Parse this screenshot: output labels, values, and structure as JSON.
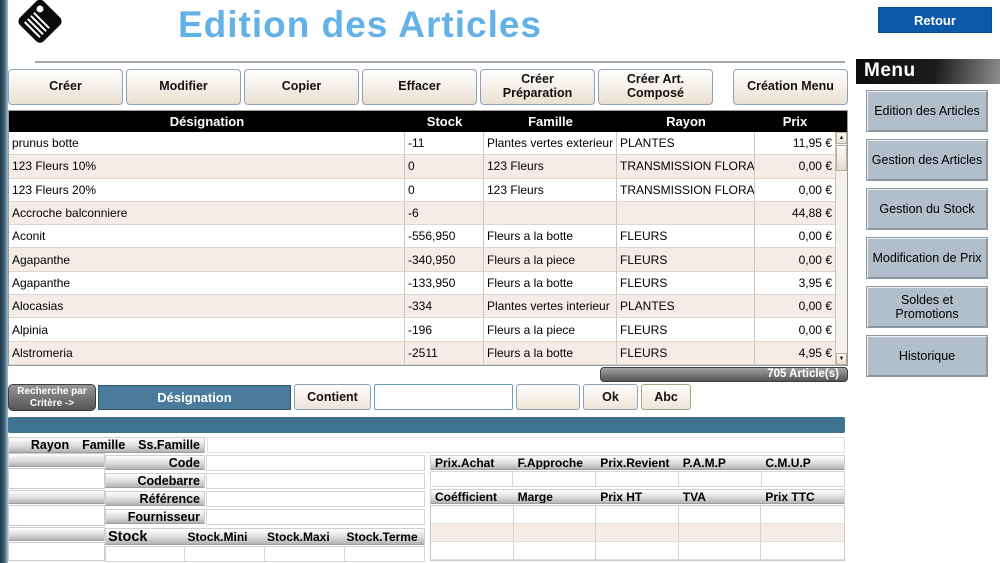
{
  "window": {
    "title": "Edition des Articles",
    "retour_label": "Retour"
  },
  "toolbar": {
    "buttons": [
      "Créer",
      "Modifier",
      "Copier",
      "Effacer",
      "Créer Préparation",
      "Créer Art. Composé",
      "Création Menu"
    ]
  },
  "table": {
    "columns": [
      "Désignation",
      "Stock",
      "Famille",
      "Rayon",
      "Prix"
    ],
    "rows": [
      [
        "prunus botte",
        "-11",
        "Plantes vertes exterieur",
        "PLANTES",
        "11,95 €"
      ],
      [
        "123 Fleurs 10%",
        "0",
        "123 Fleurs",
        "TRANSMISSION FLORALE",
        "0,00 €"
      ],
      [
        "123 Fleurs 20%",
        "0",
        "123 Fleurs",
        "TRANSMISSION FLORALE",
        "0,00 €"
      ],
      [
        "Accroche balconniere",
        "-6",
        "",
        "",
        "44,88 €"
      ],
      [
        "Aconit",
        "-556,950",
        "Fleurs a la botte",
        "FLEURS",
        "0,00 €"
      ],
      [
        "Agapanthe",
        "-340,950",
        "Fleurs a la piece",
        "FLEURS",
        "0,00 €"
      ],
      [
        "Agapanthe",
        "-133,950",
        "Fleurs a la botte",
        "FLEURS",
        "3,95 €"
      ],
      [
        "Alocasias",
        "-334",
        "Plantes vertes interieur",
        "PLANTES",
        "0,00 €"
      ],
      [
        "Alpinia",
        "-196",
        "Fleurs a la piece",
        "FLEURS",
        "0,00 €"
      ],
      [
        "Alstromeria",
        "-2511",
        "Fleurs a la botte",
        "FLEURS",
        "4,95 €"
      ]
    ],
    "count_label": "705 Article(s)"
  },
  "search": {
    "criteria_label": "Recherche par Critère ->",
    "field_label": "Désignation",
    "operator_label": "Contient",
    "input_value": "",
    "ok_label": "Ok",
    "abc_label": "Abc"
  },
  "form": {
    "selector_labels": [
      "Rayon",
      "Famille",
      "Ss.Famille"
    ],
    "field_labels": [
      "Code",
      "Codebarre",
      "Référence",
      "Fournisseur"
    ],
    "stock_headers": [
      "Stock",
      "Stock.Mini",
      "Stock.Maxi",
      "Stock.Terme"
    ],
    "price_headers_1": [
      "Prix.Achat",
      "F.Approche",
      "Prix.Revient",
      "P.A.M.P",
      "C.M.U.P"
    ],
    "price_headers_2": [
      "Coéfficient",
      "Marge",
      "Prix HT",
      "TVA",
      "Prix TTC"
    ]
  },
  "sidebar": {
    "header": "Menu",
    "items": [
      "Edition des Articles",
      "Gestion des Articles",
      "Gestion du Stock",
      "Modification de Prix",
      "Soldes et Promotions",
      "Historique"
    ]
  },
  "colors": {
    "title_blue": "#64b1e8",
    "retour_blue": "#0d59a9",
    "steel_blue": "#3f7190",
    "field_select_blue": "#4a7b9a",
    "alt_row": "#f6ece7",
    "sidebar_button": "#b2bec9",
    "table_header_bg": "#000000"
  }
}
